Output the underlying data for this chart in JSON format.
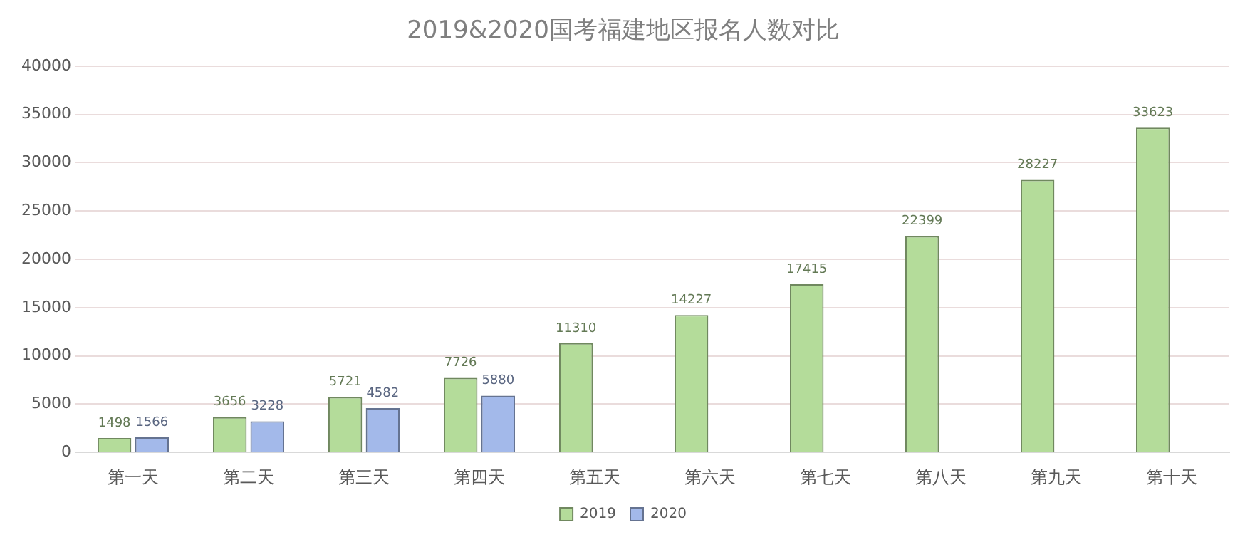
{
  "chart_data": {
    "type": "bar",
    "title": "2019&2020国考福建地区报名人数对比",
    "categories": [
      "第一天",
      "第二天",
      "第三天",
      "第四天",
      "第五天",
      "第六天",
      "第七天",
      "第八天",
      "第九天",
      "第十天"
    ],
    "series": [
      {
        "name": "2019",
        "color": "#b4dc9a",
        "values": [
          1498,
          3656,
          5721,
          7726,
          11310,
          14227,
          17415,
          22399,
          28227,
          33623
        ]
      },
      {
        "name": "2020",
        "color": "#a3b9ea",
        "values": [
          1566,
          3228,
          4582,
          5880,
          null,
          null,
          null,
          null,
          null,
          null
        ]
      }
    ],
    "ylim": [
      0,
      40000
    ],
    "yticks": [
      0,
      5000,
      10000,
      15000,
      20000,
      25000,
      30000,
      35000,
      40000
    ],
    "grid": "y",
    "legend": "bottom",
    "data_labels": true
  }
}
